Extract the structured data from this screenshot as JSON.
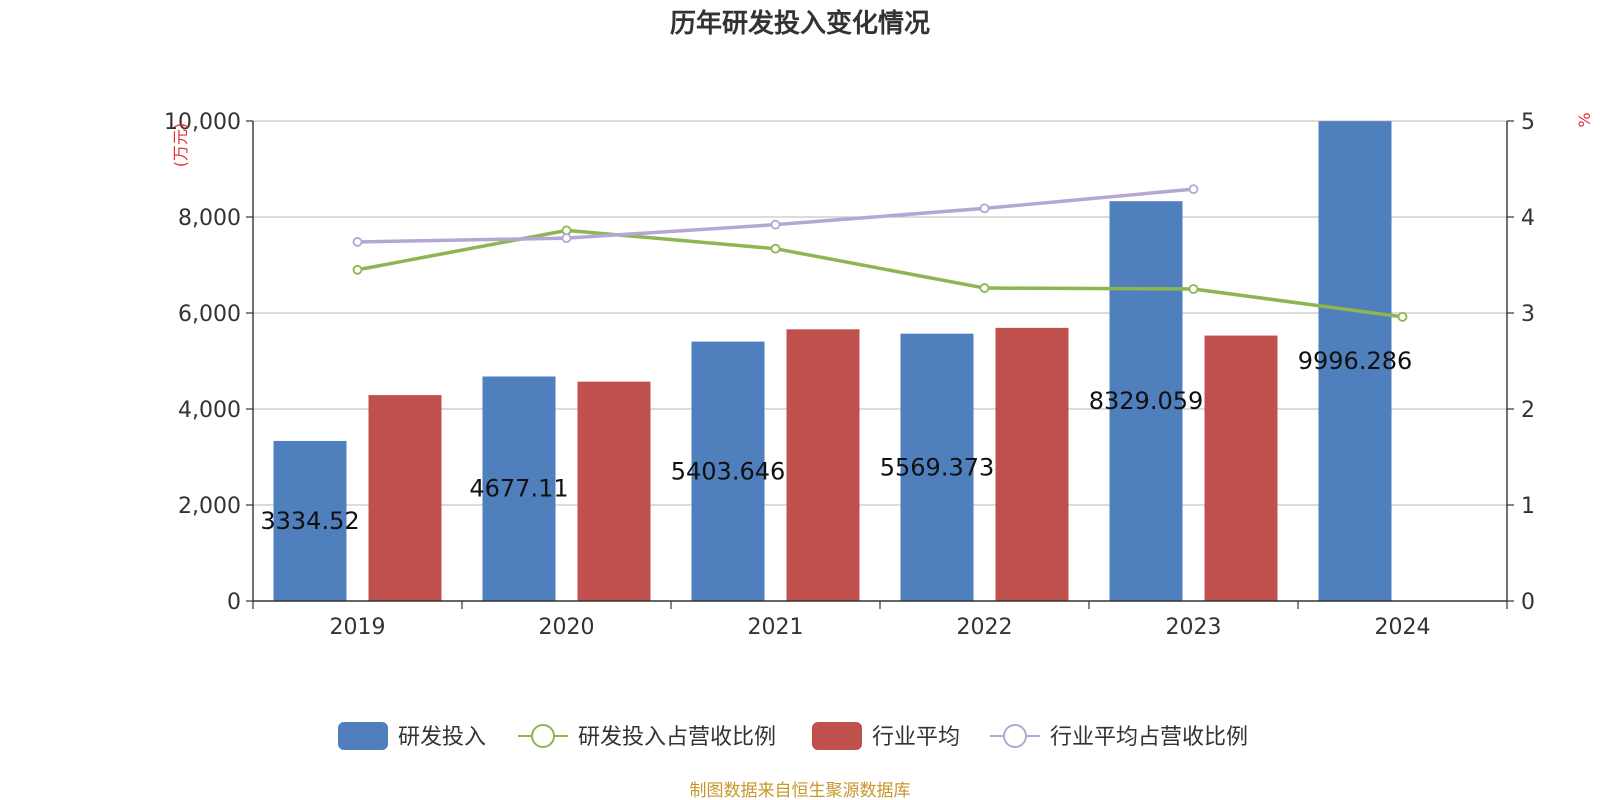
{
  "chart_data": {
    "type": "bar",
    "title": "历年研发投入变化情况",
    "categories": [
      "2019",
      "2020",
      "2021",
      "2022",
      "2023",
      "2024"
    ],
    "y_left": {
      "unit_label": "(万元)",
      "ticks": [
        "0",
        "2,000",
        "4,000",
        "6,000",
        "8,000",
        "10,000"
      ],
      "range": [
        0,
        10000
      ]
    },
    "y_right": {
      "unit_label": "%",
      "ticks": [
        "0",
        "1",
        "2",
        "3",
        "4",
        "5"
      ],
      "range": [
        0,
        5
      ]
    },
    "series": [
      {
        "name": "研发投入",
        "kind": "bar",
        "axis": "left",
        "color": "#4f7fbc",
        "values": [
          3334.52,
          4677.11,
          5403.646,
          5569.373,
          8329.059,
          9996.286
        ],
        "labels": [
          "3334.52",
          "4677.11",
          "5403.646",
          "5569.373",
          "8329.059",
          "9996.286"
        ]
      },
      {
        "name": "研发投入占营收比例",
        "kind": "line",
        "axis": "right",
        "color": "#8db550",
        "values": [
          3.45,
          3.86,
          3.67,
          3.26,
          3.25,
          2.96
        ]
      },
      {
        "name": "行业平均",
        "kind": "bar",
        "axis": "left",
        "color": "#c0504d",
        "values": [
          4290,
          4570,
          5660,
          5690,
          5530,
          null
        ]
      },
      {
        "name": "行业平均占营收比例",
        "kind": "line",
        "axis": "right",
        "color": "#b4a7d6",
        "values": [
          3.74,
          3.78,
          3.92,
          4.09,
          4.29,
          null
        ]
      }
    ],
    "grid": true,
    "legend_position": "bottom"
  },
  "source_text": "制图数据来自恒生聚源数据库"
}
